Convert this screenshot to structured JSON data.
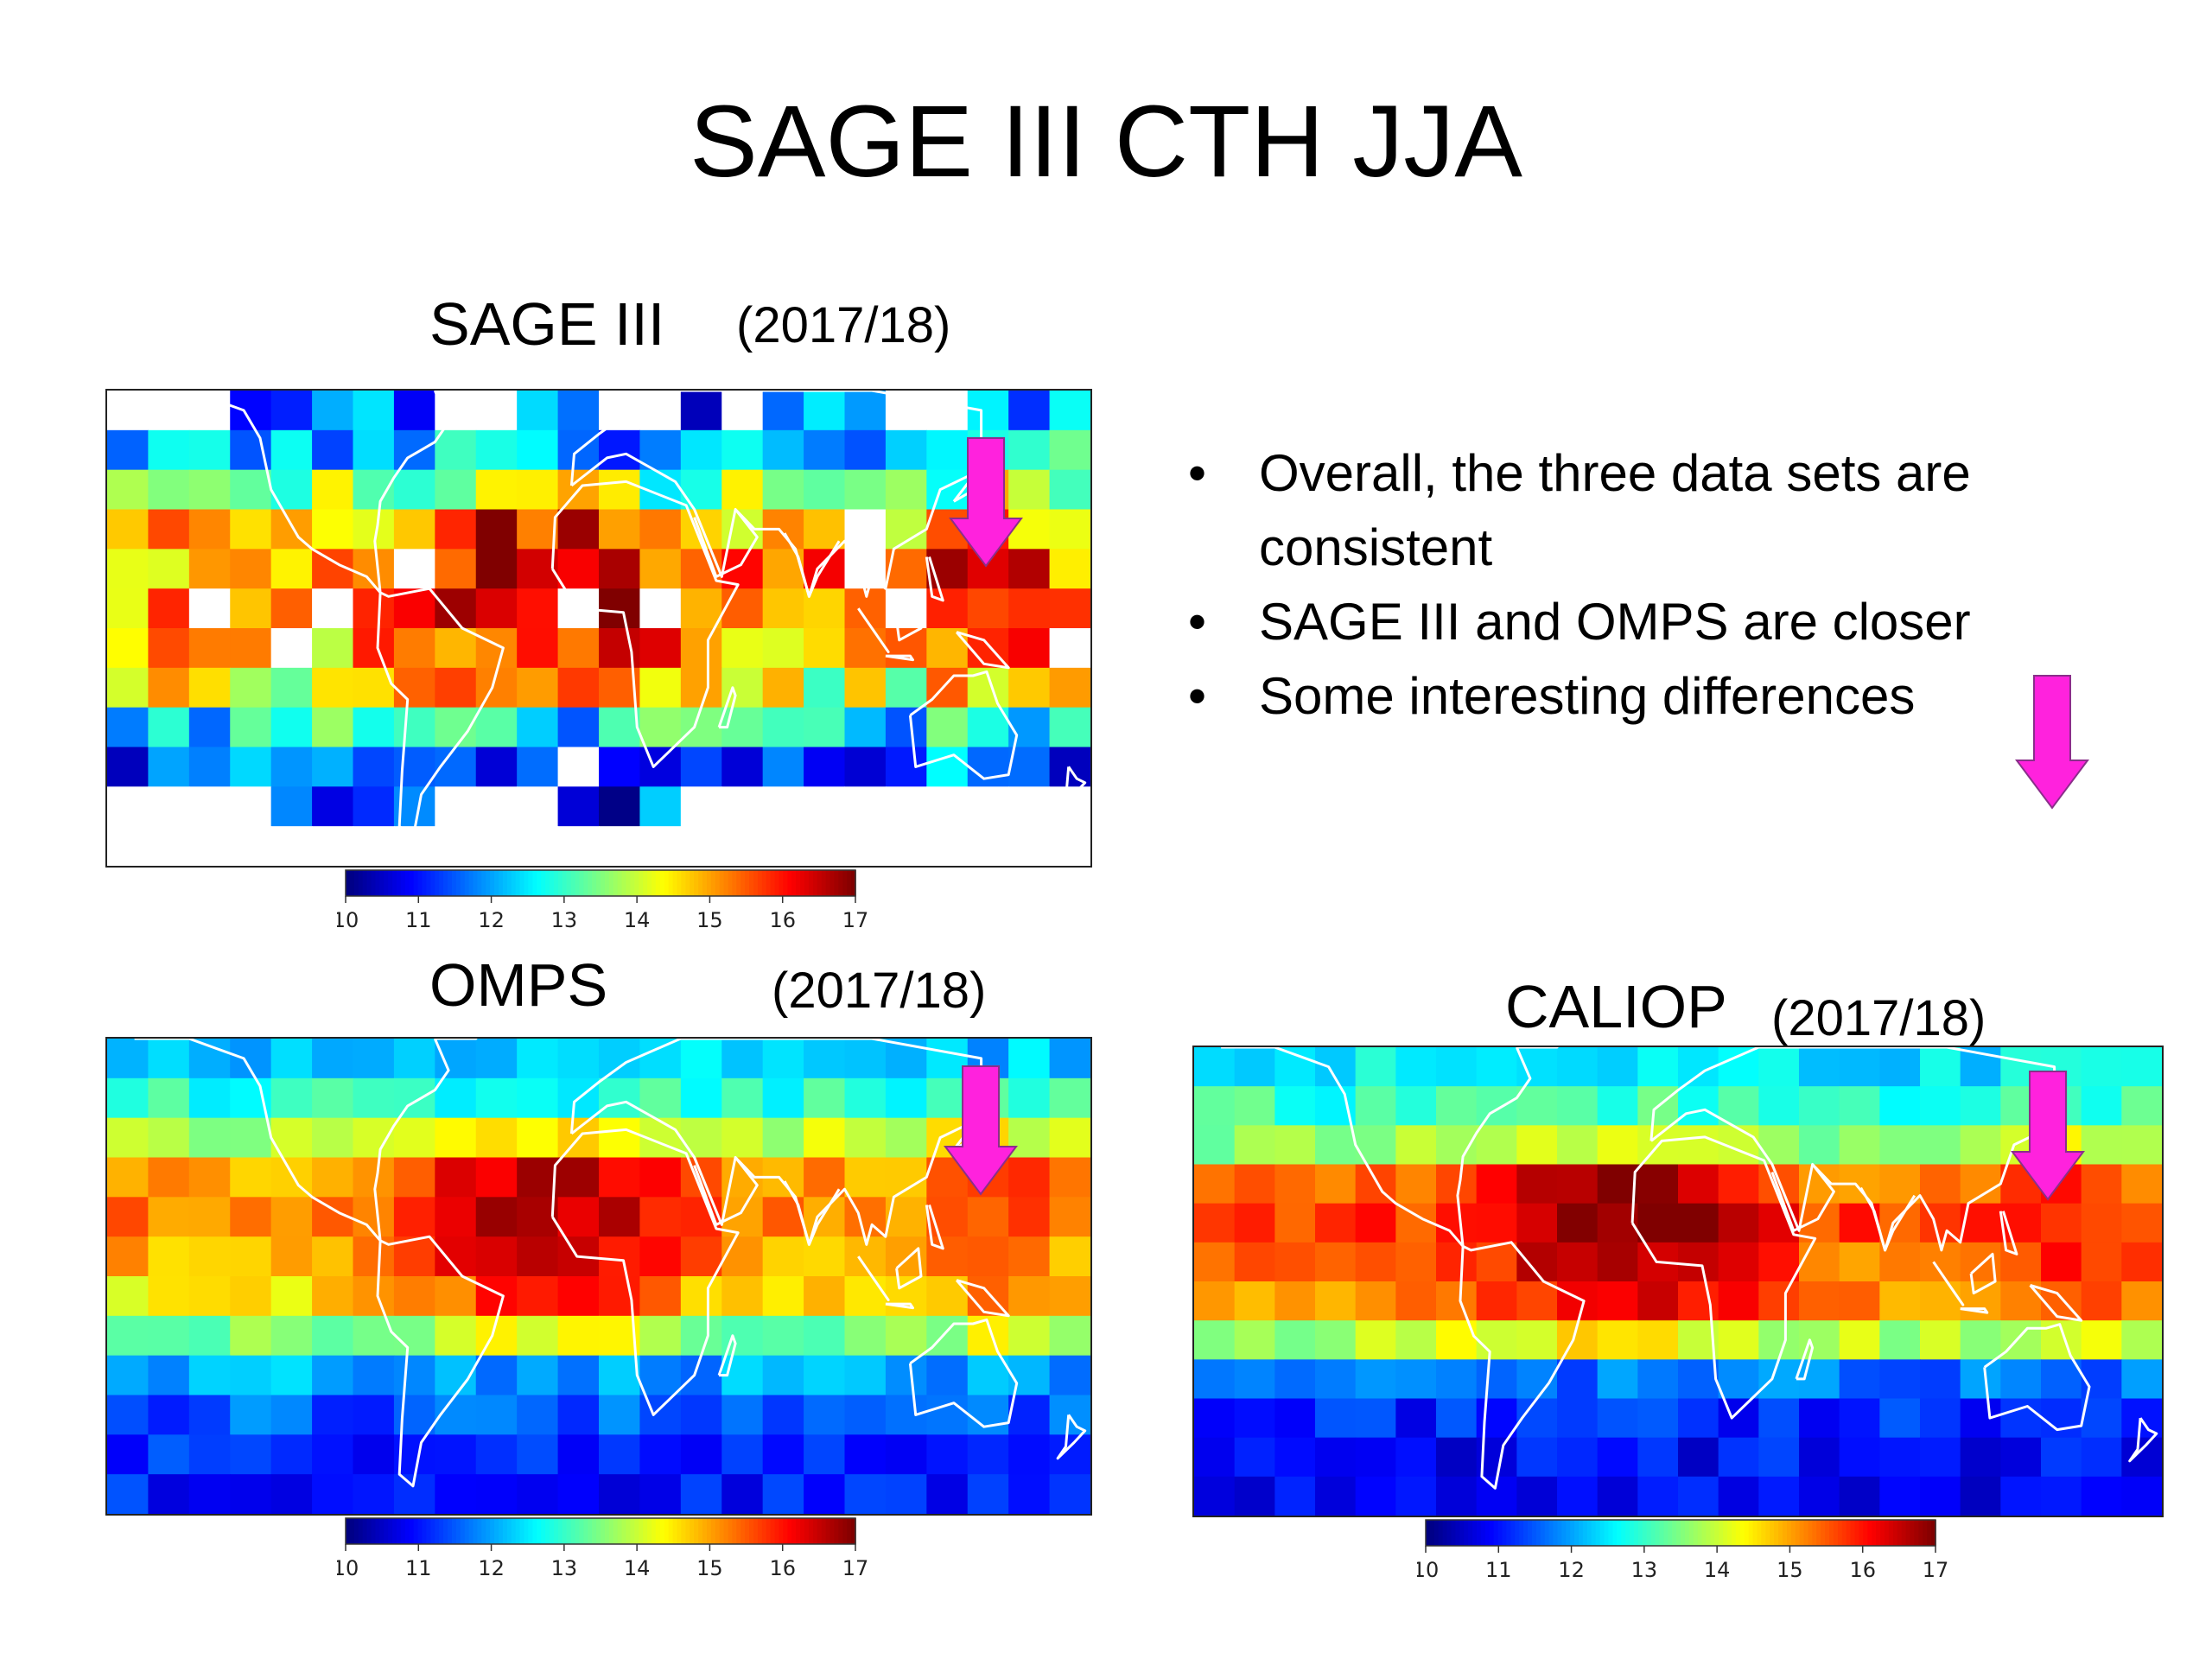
{
  "slide": {
    "title": "SAGE III CTH JJA",
    "bullets": [
      "Overall, the three data sets are consistent",
      "SAGE III and OMPS are closer",
      "Some interesting differences"
    ],
    "arrow_color": "#ff22dd",
    "coastline_color": "#ffffff"
  },
  "chart_data": [
    {
      "type": "heatmap",
      "title": "SAGE III",
      "period": "(2017/18)",
      "colorbar": {
        "min": 10,
        "max": 17,
        "ticks": [
          "10",
          "11",
          "12",
          "13",
          "14",
          "15",
          "16",
          "17"
        ],
        "colormap": "jet"
      },
      "grid": {
        "rows": 12,
        "cols": 24,
        "lat_range": [
          -60,
          60
        ],
        "lon_range": [
          -180,
          180
        ]
      },
      "lat_profile": [
        11.5,
        12.2,
        13.2,
        14.8,
        15.3,
        15.1,
        14.6,
        14.0,
        12.5,
        11.6,
        11.2,
        10.9
      ],
      "tropical_maximum": 17,
      "missing_cells": "white blocks at high latitudes and scattered gaps due to sparse occultation sampling"
    },
    {
      "type": "heatmap",
      "title": "OMPS",
      "period": "(2017/18)",
      "colorbar": {
        "min": 10,
        "max": 17,
        "ticks": [
          "10",
          "11",
          "12",
          "13",
          "14",
          "15",
          "16",
          "17"
        ],
        "colormap": "jet"
      },
      "grid": {
        "rows": 12,
        "cols": 24,
        "lat_range": [
          -60,
          60
        ],
        "lon_range": [
          -180,
          180
        ]
      },
      "lat_profile": [
        12.2,
        12.9,
        13.9,
        15.0,
        15.2,
        15.0,
        14.5,
        13.5,
        12.0,
        11.5,
        11.2,
        11.0
      ],
      "tropical_maximum": 17
    },
    {
      "type": "heatmap",
      "title": "CALIOP",
      "period": "(2017/18)",
      "colorbar": {
        "min": 10,
        "max": 17,
        "ticks": [
          "10",
          "11",
          "12",
          "13",
          "14",
          "15",
          "16",
          "17"
        ],
        "colormap": "jet"
      },
      "grid": {
        "rows": 12,
        "cols": 24,
        "lat_range": [
          -60,
          60
        ],
        "lon_range": [
          -180,
          180
        ]
      },
      "lat_profile": [
        12.5,
        13.0,
        13.6,
        15.2,
        15.6,
        15.3,
        15.0,
        13.8,
        11.6,
        11.1,
        10.9,
        10.8
      ],
      "tropical_maximum": 17
    }
  ]
}
